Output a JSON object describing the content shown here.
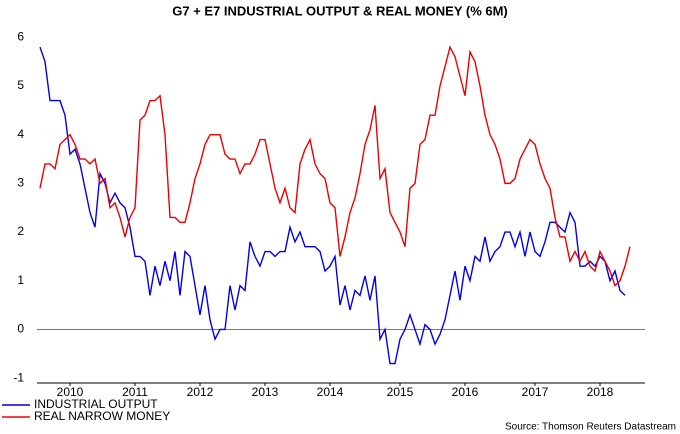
{
  "chart_data": {
    "type": "line",
    "title": "G7 + E7 INDUSTRIAL OUTPUT & REAL MONEY (% 6M)",
    "source": "Source: Thomson Reuters Datastream",
    "categories": [
      null,
      null,
      null,
      null,
      null,
      null,
      null,
      null,
      null,
      null,
      null,
      null,
      null,
      null,
      null,
      null,
      null,
      null,
      null,
      null,
      null,
      null,
      null,
      null,
      null,
      null,
      null,
      null,
      null,
      null,
      null,
      null,
      null,
      null,
      null,
      null,
      null,
      null,
      null,
      null,
      null,
      null,
      null,
      null,
      null,
      null,
      null,
      null,
      null,
      null,
      null,
      null,
      null,
      null,
      null,
      null,
      null,
      null,
      null,
      null,
      null,
      null,
      null,
      null,
      null,
      null,
      null,
      null,
      null,
      null,
      null,
      null,
      null,
      null,
      null,
      null,
      null,
      null,
      null,
      null,
      null,
      null,
      null,
      null,
      null,
      null,
      null,
      null,
      null,
      null,
      null,
      null,
      null,
      null,
      null,
      null,
      null,
      null,
      null,
      null,
      null,
      null,
      null,
      null,
      null,
      null,
      null,
      null,
      null,
      null,
      null,
      null,
      null,
      null,
      null,
      null,
      null,
      null,
      null
    ],
    "series": [
      {
        "name": "INDUSTRIAL OUTPUT",
        "color": "#0000ee",
        "values": [
          5.8,
          5.5,
          4.7,
          4.7,
          4.7,
          4.4,
          3.6,
          3.7,
          3.4,
          2.9,
          2.4,
          2.1,
          3.2,
          3.0,
          2.6,
          2.8,
          2.6,
          2.5,
          2.1,
          1.5,
          1.5,
          1.4,
          0.7,
          1.3,
          0.9,
          1.4,
          1.0,
          1.6,
          0.7,
          1.6,
          1.5,
          0.9,
          0.3,
          0.9,
          0.2,
          -0.2,
          0.0,
          0.0,
          0.9,
          0.4,
          0.9,
          0.8,
          1.8,
          1.5,
          1.3,
          1.6,
          1.6,
          1.5,
          1.6,
          1.6,
          2.1,
          1.8,
          2.0,
          1.7,
          1.7,
          1.7,
          1.6,
          1.2,
          1.3,
          1.5,
          0.5,
          0.9,
          0.4,
          0.8,
          0.7,
          1.1,
          0.6,
          1.1,
          -0.2,
          0.0,
          -0.7,
          -0.7,
          -0.2,
          0.0,
          0.3,
          0.0,
          -0.3,
          0.1,
          0.0,
          -0.3,
          -0.1,
          0.2,
          0.7,
          1.2,
          0.6,
          1.3,
          1.0,
          1.5,
          1.4,
          1.9,
          1.4,
          1.6,
          1.7,
          2.0,
          2.0,
          1.7,
          2.0,
          1.5,
          2.0,
          1.6,
          1.5,
          1.8,
          2.2,
          2.2,
          2.1,
          2.0,
          2.4,
          2.2,
          1.3,
          1.3,
          1.4,
          1.3,
          1.5,
          1.4,
          1.0,
          1.2,
          0.8,
          0.7,
          null
        ]
      },
      {
        "name": "REAL NARROW MONEY",
        "color": "#ee0000",
        "values": [
          2.9,
          3.4,
          3.4,
          3.3,
          3.8,
          3.9,
          4.0,
          3.8,
          3.5,
          3.5,
          3.4,
          3.5,
          3.0,
          3.1,
          2.5,
          2.6,
          2.3,
          1.9,
          2.3,
          2.5,
          4.3,
          4.4,
          4.7,
          4.7,
          4.8,
          4.0,
          2.3,
          2.3,
          2.2,
          2.2,
          2.6,
          3.1,
          3.4,
          3.8,
          4.0,
          4.0,
          4.0,
          3.6,
          3.5,
          3.5,
          3.2,
          3.4,
          3.4,
          3.6,
          3.9,
          3.9,
          3.4,
          2.9,
          2.6,
          2.9,
          2.5,
          2.4,
          3.4,
          3.7,
          3.9,
          3.4,
          3.2,
          3.1,
          2.6,
          2.5,
          1.5,
          1.9,
          2.4,
          2.7,
          3.2,
          3.8,
          4.1,
          4.6,
          3.1,
          3.3,
          2.4,
          2.2,
          2.0,
          1.7,
          2.9,
          3.0,
          3.8,
          3.9,
          4.4,
          4.4,
          5.0,
          5.4,
          5.8,
          5.6,
          5.2,
          4.8,
          5.7,
          5.5,
          5.0,
          4.4,
          4.0,
          3.8,
          3.5,
          3.0,
          3.0,
          3.1,
          3.5,
          3.7,
          3.9,
          3.8,
          3.4,
          3.1,
          2.9,
          2.3,
          1.9,
          1.9,
          1.4,
          1.6,
          1.4,
          1.6,
          1.3,
          1.2,
          1.6,
          1.4,
          1.2,
          0.9,
          1.0,
          1.3,
          1.7
        ]
      }
    ],
    "xlim": [
      -0.6,
      121
    ],
    "xticks": [
      {
        "value": 6,
        "label": "2010"
      },
      {
        "value": 19,
        "label": "2011"
      },
      {
        "value": 32,
        "label": "2012"
      },
      {
        "value": 45,
        "label": "2013"
      },
      {
        "value": 58,
        "label": "2014"
      },
      {
        "value": 72,
        "label": "2015"
      },
      {
        "value": 85,
        "label": "2016"
      },
      {
        "value": 99,
        "label": "2017"
      },
      {
        "value": 112,
        "label": "2018"
      }
    ],
    "ylim": [
      -1.1,
      6.15
    ],
    "yticks": [
      -1,
      0,
      1,
      2,
      3,
      4,
      5,
      6
    ],
    "zero_line": true,
    "legend": "bottom-left"
  }
}
